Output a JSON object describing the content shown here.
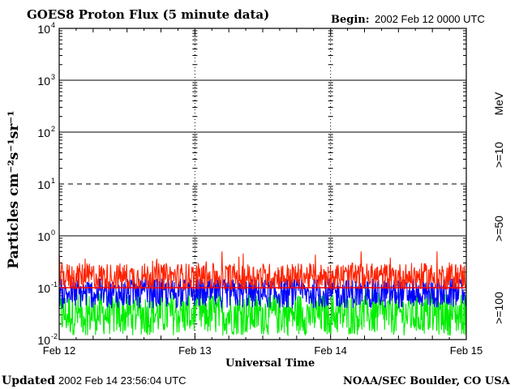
{
  "header": {
    "title": "GOES8 Proton Flux (5 minute data)",
    "begin_label": "Begin:",
    "begin_value": "2002 Feb 12 0000 UTC"
  },
  "footer": {
    "updated_label": "Updated",
    "updated_value": "2002 Feb 14 23:56:04 UTC",
    "source": "NOAA/SEC Boulder, CO USA"
  },
  "chart_data": {
    "type": "line",
    "xlabel": "Universal Time",
    "ylabel": "Particles cm⁻²s⁻¹sr⁻¹",
    "x_tick_labels": [
      "Feb 12",
      "Feb 13",
      "Feb 14",
      "Feb 15"
    ],
    "xlim": [
      "2002-02-12 00:00",
      "2002-02-15 00:00"
    ],
    "y_scale": "log",
    "ylim": [
      0.01,
      10000
    ],
    "y_tick_labels": [
      {
        "base": "10",
        "exp": "-2",
        "value": 0.01
      },
      {
        "base": "10",
        "exp": "-1",
        "value": 0.1
      },
      {
        "base": "10",
        "exp": "0",
        "value": 1
      },
      {
        "base": "10",
        "exp": "1",
        "value": 10
      },
      {
        "base": "10",
        "exp": "2",
        "value": 100
      },
      {
        "base": "10",
        "exp": "3",
        "value": 1000
      },
      {
        "base": "10",
        "exp": "4",
        "value": 10000
      }
    ],
    "threshold_lines": [
      {
        "value": 10,
        "style": "dashed"
      },
      {
        "value": 0.1,
        "style": "solid",
        "color": "#ff0000"
      }
    ],
    "unit_label": "MeV",
    "series": [
      {
        "name": ">=10",
        "color": "#ff2200",
        "typical_range": [
          0.09,
          0.3
        ],
        "peak": 0.5
      },
      {
        "name": ">=50",
        "color": "#0000ff",
        "typical_range": [
          0.04,
          0.15
        ],
        "peak": 0.15
      },
      {
        "name": ">=100",
        "color": "#00ee00",
        "typical_range": [
          0.012,
          0.08
        ],
        "peak": 0.1
      }
    ],
    "grid": true,
    "legend_position": "right, vertical"
  }
}
